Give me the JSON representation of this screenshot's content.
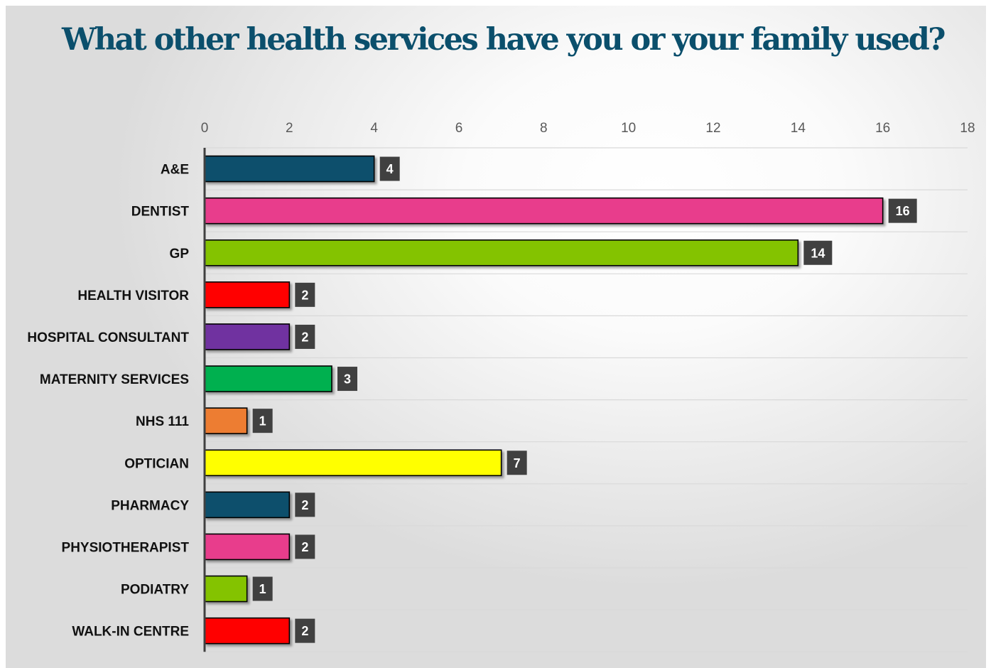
{
  "chart_data": {
    "type": "bar",
    "orientation": "horizontal",
    "title": "What other health services have you or your family used?",
    "categories": [
      "A&E",
      "DENTIST",
      "GP",
      "HEALTH VISITOR",
      "HOSPITAL CONSULTANT",
      "MATERNITY SERVICES",
      "NHS 111",
      "OPTICIAN",
      "PHARMACY",
      "PHYSIOTHERAPIST",
      "PODIATRY",
      "WALK-IN CENTRE"
    ],
    "values": [
      4,
      16,
      14,
      2,
      2,
      3,
      1,
      7,
      2,
      2,
      1,
      2
    ],
    "colors": [
      "#0b4f6c",
      "#e83e8c",
      "#84c300",
      "#ff0000",
      "#7030a0",
      "#00b050",
      "#ed7d31",
      "#ffff00",
      "#0b4f6c",
      "#e83e8c",
      "#84c300",
      "#ff0000"
    ],
    "xlim": [
      0,
      18
    ],
    "x_ticks": [
      0,
      2,
      4,
      6,
      8,
      10,
      12,
      14,
      16,
      18
    ],
    "x_axis_position": "top",
    "grid": "horizontal",
    "legend": "none",
    "data_labels": true,
    "title_color": "#0b4f6c",
    "data_label_bg": "#404040"
  }
}
